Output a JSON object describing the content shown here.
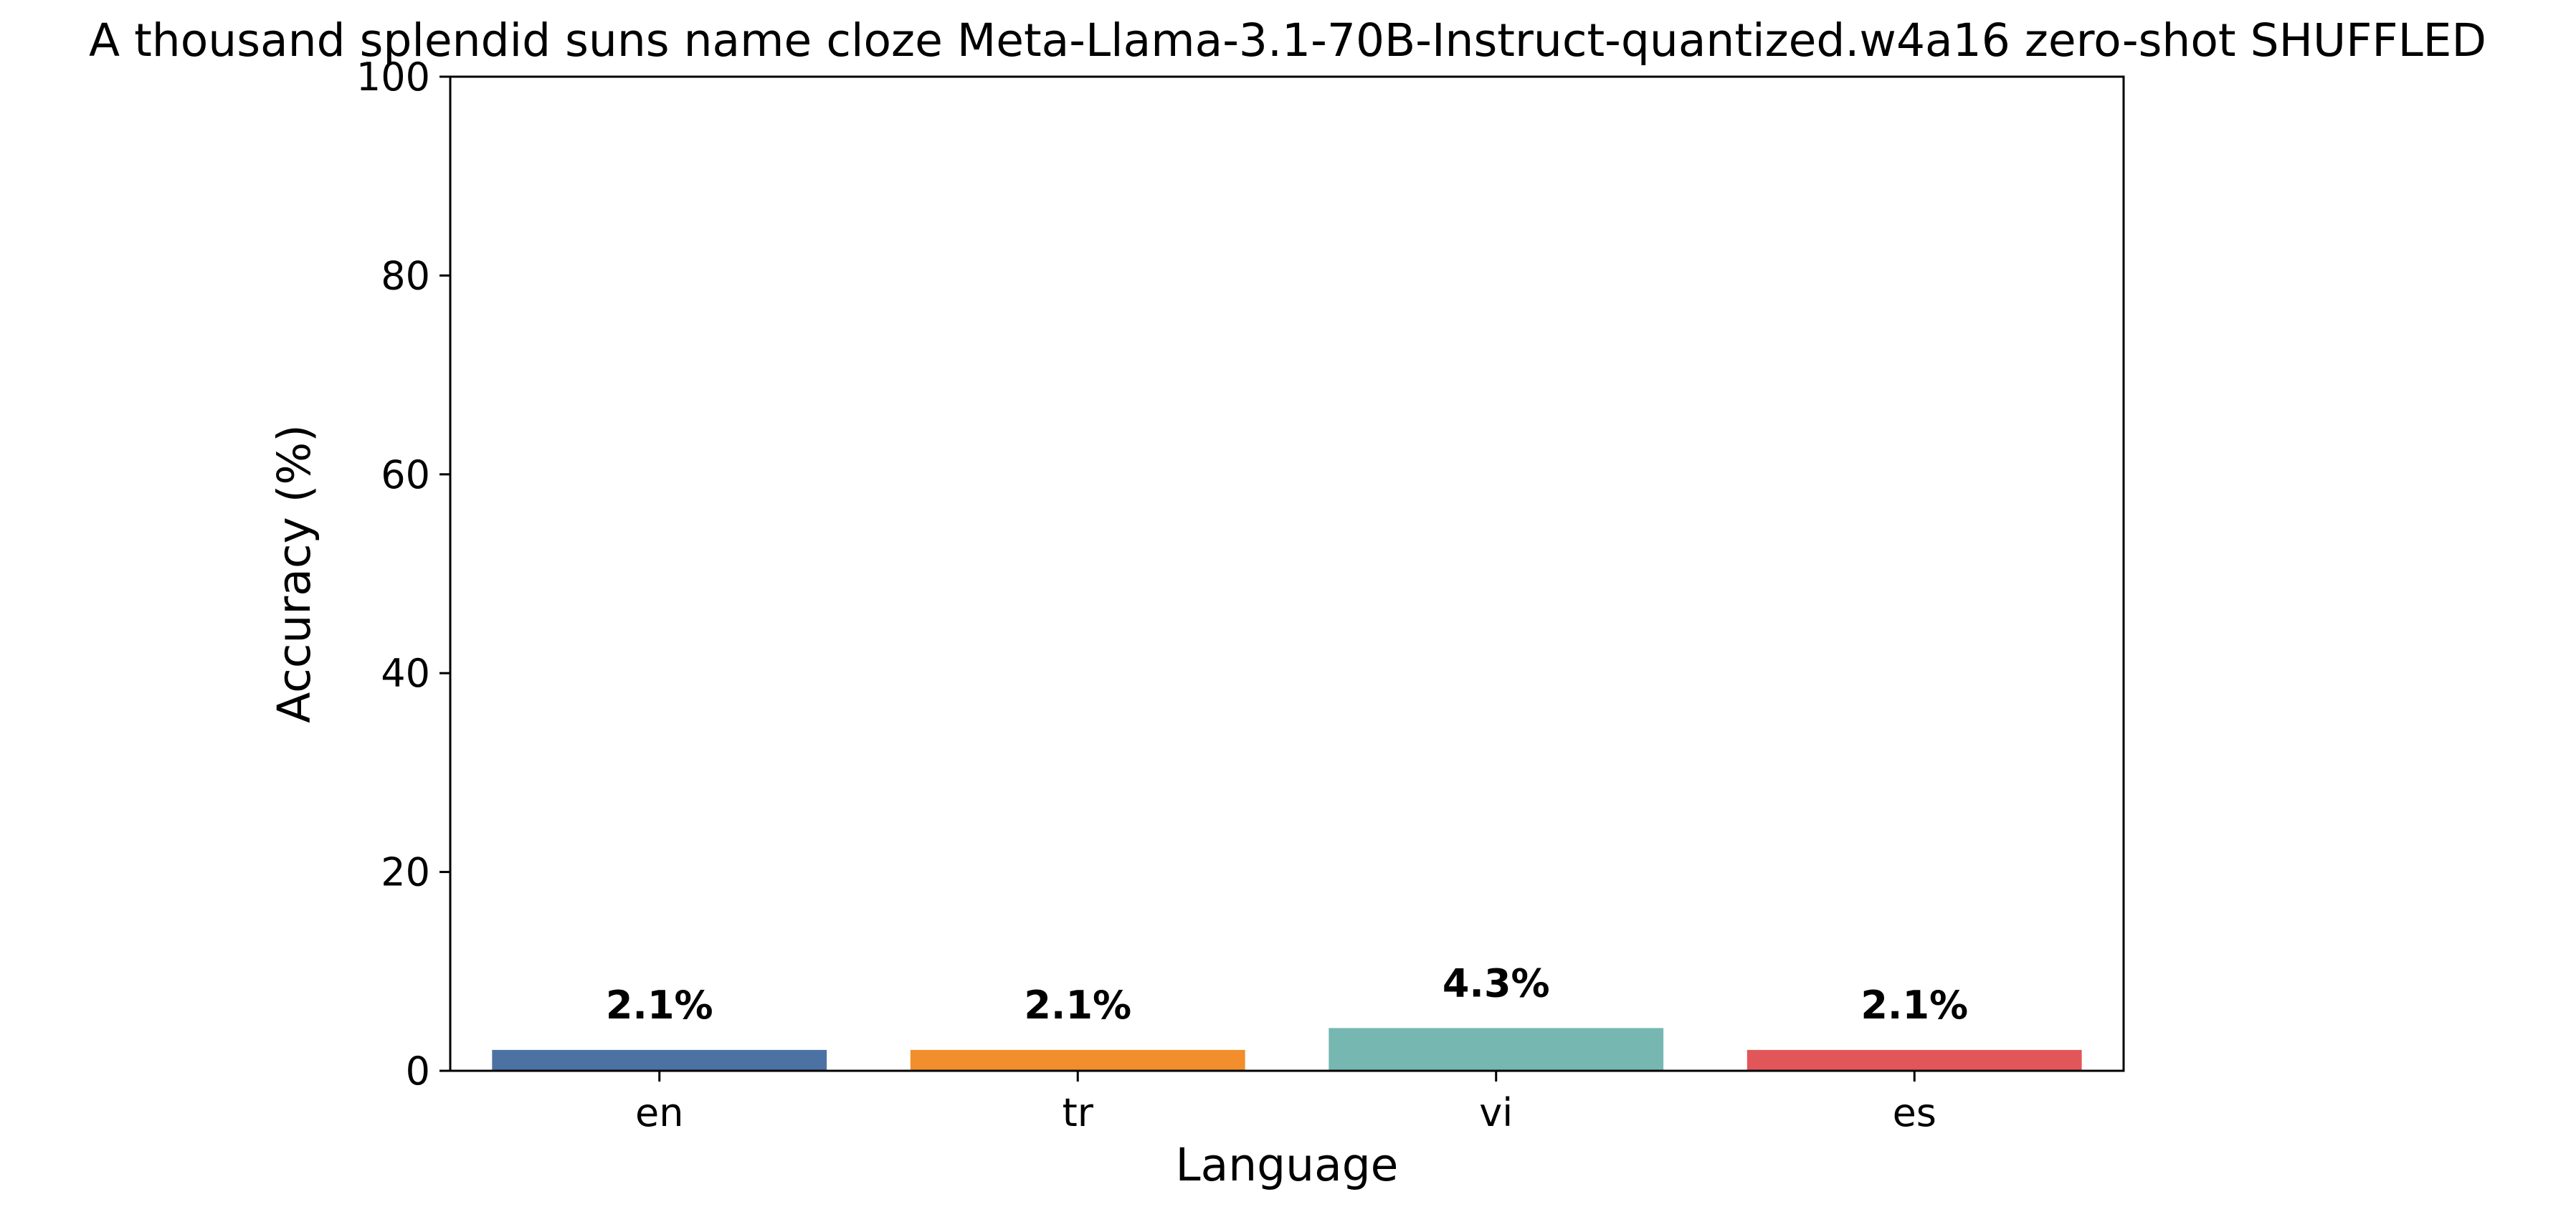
{
  "chart_data": {
    "type": "bar",
    "title": "A thousand splendid suns name cloze Meta-Llama-3.1-70B-Instruct-quantized.w4a16 zero-shot SHUFFLED",
    "xlabel": "Language",
    "ylabel": "Accuracy (%)",
    "categories": [
      "en",
      "tr",
      "vi",
      "es"
    ],
    "values": [
      2.1,
      2.1,
      4.3,
      2.1
    ],
    "data_labels": [
      "2.1%",
      "2.1%",
      "4.3%",
      "2.1%"
    ],
    "colors": [
      "#4c72a4",
      "#f28e2b",
      "#76b7b2",
      "#e15759"
    ],
    "ylim": [
      0,
      100
    ],
    "yticks": [
      0,
      20,
      40,
      60,
      80,
      100
    ],
    "ytick_labels": [
      "0",
      "20",
      "40",
      "60",
      "80",
      "100"
    ],
    "grid": false,
    "legend": "none"
  }
}
